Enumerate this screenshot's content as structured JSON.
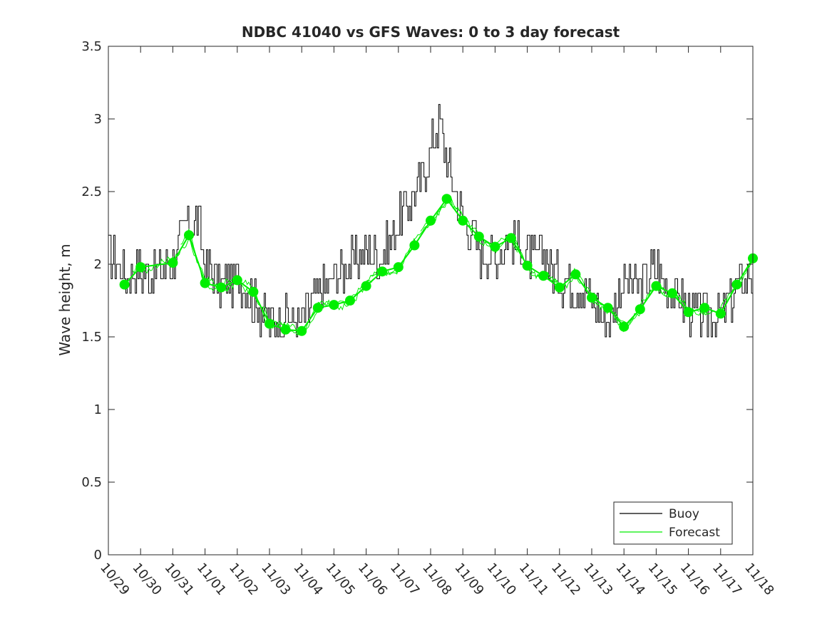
{
  "chart_data": {
    "type": "line",
    "title": "NDBC 41040 vs GFS Waves: 0 to 3 day forecast",
    "xlabel": "",
    "ylabel": "Wave height, m",
    "xlim": [
      0,
      20
    ],
    "ylim": [
      0,
      3.5
    ],
    "x_ticks": [
      0,
      1,
      2,
      3,
      4,
      5,
      6,
      7,
      8,
      9,
      10,
      11,
      12,
      13,
      14,
      15,
      16,
      17,
      18,
      19,
      20
    ],
    "x_tick_labels": [
      "10/29",
      "10/30",
      "10/31",
      "11/01",
      "11/02",
      "11/03",
      "11/04",
      "11/05",
      "11/06",
      "11/07",
      "11/08",
      "11/09",
      "11/10",
      "11/11",
      "11/12",
      "11/13",
      "11/14",
      "11/15",
      "11/16",
      "11/17",
      "11/18"
    ],
    "y_ticks": [
      0,
      0.5,
      1,
      1.5,
      2,
      2.5,
      3,
      3.5
    ],
    "y_tick_labels": [
      "0",
      "0.5",
      "1",
      "1.5",
      "2",
      "2.5",
      "3",
      "3.5"
    ],
    "legend": {
      "placement": "bottom-right",
      "entries": [
        "Buoy",
        "Forecast"
      ]
    },
    "colors": {
      "buoy": "#000000",
      "forecast": "#00ee00",
      "axis": "#262626"
    },
    "series": [
      {
        "name": "Buoy",
        "x": [
          0,
          0.5,
          1,
          1.5,
          2,
          2.5,
          2.8,
          3,
          3.5,
          4,
          4.5,
          5,
          5.5,
          6,
          6.5,
          7,
          7.5,
          8,
          8.5,
          9,
          9.3,
          9.7,
          10,
          10.25,
          10.5,
          10.75,
          11,
          11.25,
          11.5,
          12,
          12.5,
          13,
          13.5,
          14,
          14.5,
          15,
          15.5,
          16,
          16.5,
          17,
          17.5,
          18,
          18.5,
          19,
          19.5,
          20
        ],
        "y": [
          2.1,
          1.95,
          1.95,
          1.95,
          2.0,
          2.3,
          2.3,
          2.0,
          1.85,
          1.9,
          1.75,
          1.6,
          1.65,
          1.6,
          1.8,
          1.9,
          2.0,
          2.1,
          2.05,
          2.3,
          2.4,
          2.6,
          2.8,
          3.0,
          2.7,
          2.5,
          2.3,
          2.25,
          2.1,
          2.05,
          2.2,
          2.05,
          2.05,
          1.9,
          1.85,
          1.75,
          1.6,
          1.9,
          1.85,
          2.0,
          1.8,
          1.7,
          1.65,
          1.65,
          1.85,
          1.95
        ]
      },
      {
        "name": "Forecast",
        "x": [
          0.5,
          1,
          2,
          2.5,
          3,
          3.5,
          4,
          4.5,
          5,
          5.5,
          6,
          6.5,
          7,
          7.5,
          8,
          8.5,
          9,
          9.5,
          10,
          10.5,
          11,
          11.5,
          12,
          12.5,
          13,
          13.5,
          14,
          14.5,
          15,
          15.5,
          16,
          16.5,
          17,
          17.5,
          18,
          18.5,
          19,
          19.5,
          20
        ],
        "y": [
          1.86,
          1.98,
          2.01,
          2.2,
          1.87,
          1.84,
          1.89,
          1.81,
          1.59,
          1.55,
          1.54,
          1.7,
          1.72,
          1.75,
          1.85,
          1.95,
          1.98,
          2.13,
          2.3,
          2.45,
          2.3,
          2.19,
          2.12,
          2.18,
          1.99,
          1.92,
          1.84,
          1.93,
          1.77,
          1.7,
          1.57,
          1.69,
          1.85,
          1.8,
          1.67,
          1.7,
          1.66,
          1.86,
          2.04
        ]
      }
    ]
  }
}
